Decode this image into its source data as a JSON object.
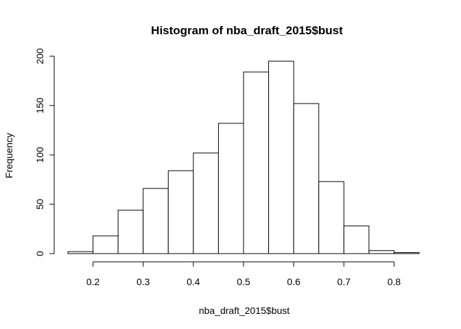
{
  "chart_data": {
    "type": "bar",
    "title": "Histogram of nba_draft_2015$bust",
    "xlabel": "nba_draft_2015$bust",
    "ylabel": "Frequency",
    "bins": [
      {
        "start": 0.15,
        "end": 0.2,
        "count": 2
      },
      {
        "start": 0.2,
        "end": 0.25,
        "count": 18
      },
      {
        "start": 0.25,
        "end": 0.3,
        "count": 44
      },
      {
        "start": 0.3,
        "end": 0.35,
        "count": 66
      },
      {
        "start": 0.35,
        "end": 0.4,
        "count": 84
      },
      {
        "start": 0.4,
        "end": 0.45,
        "count": 102
      },
      {
        "start": 0.45,
        "end": 0.5,
        "count": 132
      },
      {
        "start": 0.5,
        "end": 0.55,
        "count": 184
      },
      {
        "start": 0.55,
        "end": 0.6,
        "count": 195
      },
      {
        "start": 0.6,
        "end": 0.65,
        "count": 152
      },
      {
        "start": 0.65,
        "end": 0.7,
        "count": 73
      },
      {
        "start": 0.7,
        "end": 0.75,
        "count": 28
      },
      {
        "start": 0.75,
        "end": 0.8,
        "count": 3
      },
      {
        "start": 0.8,
        "end": 0.85,
        "count": 1
      }
    ],
    "xlim": [
      0.15,
      0.85
    ],
    "ylim": [
      0,
      200
    ],
    "x_ticks": [
      "0.2",
      "0.3",
      "0.4",
      "0.5",
      "0.6",
      "0.7",
      "0.8"
    ],
    "y_ticks": [
      "0",
      "50",
      "100",
      "150",
      "200"
    ],
    "grid": false,
    "legend": "none"
  }
}
